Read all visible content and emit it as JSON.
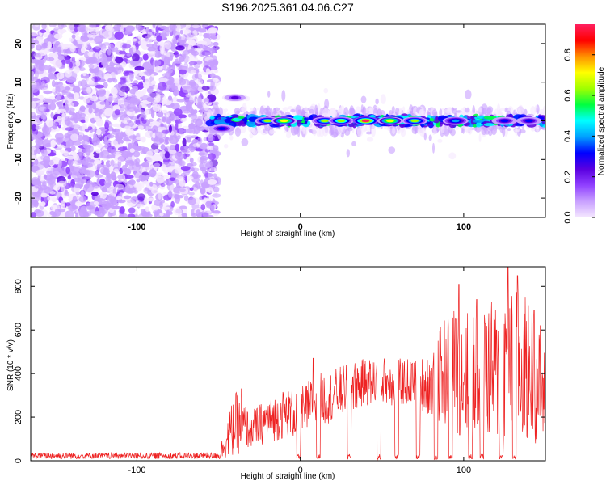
{
  "title": "S196.2025.361.04.06.C27",
  "chart_data": [
    {
      "type": "heatmap",
      "title": "S196.2025.361.04.06.C27",
      "xlabel": "Height of straight line (km)",
      "ylabel": "Frequency (Hz)",
      "xlim": [
        -165,
        150
      ],
      "ylim": [
        -25,
        25
      ],
      "xticks": [
        -100,
        0,
        100
      ],
      "yticks": [
        -20,
        -10,
        0,
        10,
        20
      ],
      "colorbar": {
        "label": "Normalized spectral amplitude",
        "range": [
          0,
          0.95
        ],
        "ticks": [
          0.0,
          0.2,
          0.4,
          0.6,
          0.8
        ],
        "tick_labels": [
          "0.0",
          "0.2",
          "0.4",
          "0.6",
          "0.8"
        ],
        "colors": [
          "#f5e8ff",
          "#c8a0ff",
          "#9040ff",
          "#5a00e0",
          "#0000ff",
          "#00a0ff",
          "#00ffff",
          "#00ff40",
          "#a0ff00",
          "#ffff00",
          "#ff9000",
          "#ff0000",
          "#ff2060"
        ]
      },
      "noise_region": {
        "x_from": -165,
        "x_to": -55,
        "amplitude": 0.05
      },
      "signal_band": {
        "x_from": -58,
        "x_to": 150,
        "center_freq": 0
      },
      "peaks": [
        {
          "x": -48,
          "freq": -2,
          "amplitude": 0.3
        },
        {
          "x": -40,
          "freq": 6,
          "amplitude": 0.2
        },
        {
          "x": -20,
          "freq": 0,
          "amplitude": 0.6
        },
        {
          "x": -10,
          "freq": 0,
          "amplitude": 0.75
        },
        {
          "x": 15,
          "freq": 0,
          "amplitude": 0.6
        },
        {
          "x": 25,
          "freq": 0,
          "amplitude": 0.65
        },
        {
          "x": 40,
          "freq": 0,
          "amplitude": 0.95
        },
        {
          "x": 55,
          "freq": 0,
          "amplitude": 0.75
        },
        {
          "x": 70,
          "freq": 0,
          "amplitude": 0.6
        },
        {
          "x": 95,
          "freq": 0,
          "amplitude": 0.4
        },
        {
          "x": 125,
          "freq": 0,
          "amplitude": 0.35
        },
        {
          "x": 140,
          "freq": 0,
          "amplitude": 0.3
        }
      ]
    },
    {
      "type": "line",
      "xlabel": "Height of straight line (km)",
      "ylabel": "SNR (10 * v/v)",
      "xlim": [
        -165,
        150
      ],
      "ylim": [
        0,
        890
      ],
      "xticks": [
        -100,
        0,
        100
      ],
      "yticks": [
        0,
        200,
        400,
        600,
        800
      ],
      "color": "#ee2222",
      "envelope": [
        {
          "x": -165,
          "lo": 0,
          "hi": 45
        },
        {
          "x": -50,
          "lo": 0,
          "hi": 45
        },
        {
          "x": -40,
          "lo": 20,
          "hi": 320
        },
        {
          "x": -30,
          "lo": 60,
          "hi": 230
        },
        {
          "x": -20,
          "lo": 80,
          "hi": 290
        },
        {
          "x": -10,
          "lo": 100,
          "hi": 330
        },
        {
          "x": 0,
          "lo": 100,
          "hi": 340
        },
        {
          "x": 10,
          "lo": 150,
          "hi": 400
        },
        {
          "x": 20,
          "lo": 180,
          "hi": 420
        },
        {
          "x": 30,
          "lo": 220,
          "hi": 450
        },
        {
          "x": 40,
          "lo": 250,
          "hi": 470
        },
        {
          "x": 50,
          "lo": 250,
          "hi": 480
        },
        {
          "x": 60,
          "lo": 250,
          "hi": 470
        },
        {
          "x": 70,
          "lo": 250,
          "hi": 470
        },
        {
          "x": 80,
          "lo": 200,
          "hi": 500
        },
        {
          "x": 90,
          "lo": 150,
          "hi": 700
        },
        {
          "x": 100,
          "lo": 100,
          "hi": 700
        },
        {
          "x": 110,
          "lo": 80,
          "hi": 700
        },
        {
          "x": 120,
          "lo": 80,
          "hi": 750
        },
        {
          "x": 130,
          "lo": 80,
          "hi": 800
        },
        {
          "x": 140,
          "lo": 80,
          "hi": 750
        },
        {
          "x": 150,
          "lo": 80,
          "hi": 500
        }
      ],
      "spikes": [
        {
          "x": -36,
          "y": 330
        },
        {
          "x": 8,
          "y": 470
        },
        {
          "x": 95,
          "y": 650
        },
        {
          "x": 97,
          "y": 810
        },
        {
          "x": 108,
          "y": 740
        },
        {
          "x": 113,
          "y": 630
        },
        {
          "x": 120,
          "y": 600
        },
        {
          "x": 127,
          "y": 890
        },
        {
          "x": 133,
          "y": 850
        },
        {
          "x": 143,
          "y": 690
        },
        {
          "x": 147,
          "y": 620
        }
      ],
      "dips": [
        -1,
        11,
        30,
        48,
        59,
        72,
        83,
        92,
        104,
        111,
        123,
        131
      ]
    }
  ]
}
